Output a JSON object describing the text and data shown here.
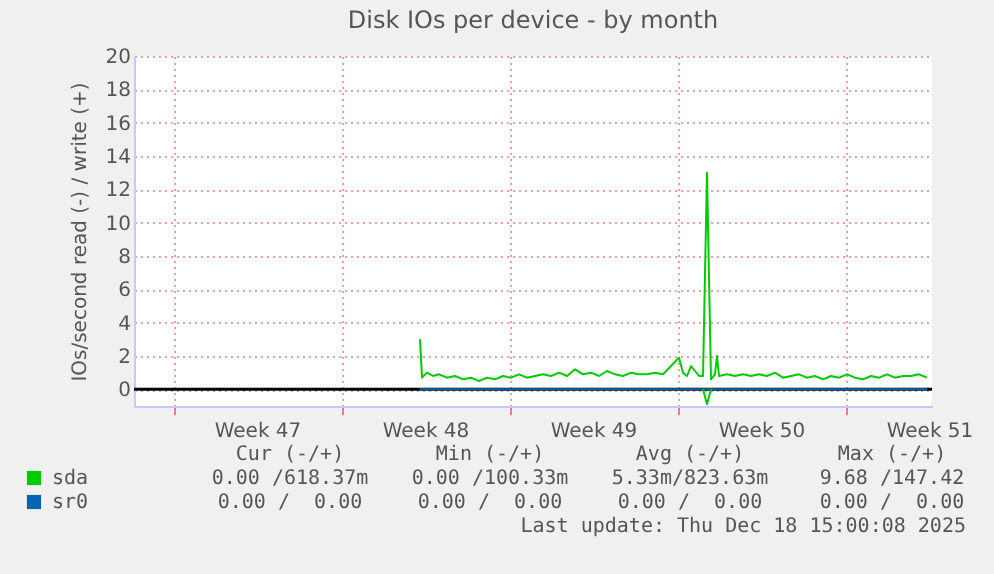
{
  "chart_data": {
    "type": "line",
    "title": "Disk IOs per device - by month",
    "ylabel": "IOs/second read (-) / write (+)",
    "xlim": [
      "2025-11-15T09:00",
      "2025-12-18T15:00"
    ],
    "xticks": [
      {
        "value": "2025-11-17T00:00",
        "label": null
      },
      {
        "value": "2025-11-20T12:00",
        "label": "Week 47"
      },
      {
        "value": "2025-11-24T00:00",
        "label": null
      },
      {
        "value": "2025-11-27T12:00",
        "label": "Week 48"
      },
      {
        "value": "2025-12-01T00:00",
        "label": null
      },
      {
        "value": "2025-12-04T12:00",
        "label": "Week 49"
      },
      {
        "value": "2025-12-08T00:00",
        "label": null
      },
      {
        "value": "2025-12-11T12:00",
        "label": "Week 50"
      },
      {
        "value": "2025-12-15T00:00",
        "label": null
      },
      {
        "value": "2025-12-18T12:00",
        "label": "Week 51"
      }
    ],
    "ylim": [
      -1,
      20
    ],
    "yticks": [
      0,
      2,
      4,
      6,
      8,
      10,
      12,
      14,
      16,
      18,
      20
    ],
    "grid": true,
    "legend": "bottom left",
    "ref_lines": [
      {
        "axis": "y",
        "value": 0,
        "color": "#000000"
      }
    ],
    "series": [
      {
        "name": "sda",
        "color": "#00cc00",
        "x": [
          "2025-11-27T07:00",
          "2025-11-27T09:00",
          "2025-11-27T14:00",
          "2025-11-27T20:00",
          "2025-11-28T02:00",
          "2025-11-28T10:00",
          "2025-11-28T18:00",
          "2025-11-29T02:00",
          "2025-11-29T10:00",
          "2025-11-29T18:00",
          "2025-11-30T02:00",
          "2025-11-30T10:00",
          "2025-11-30T18:00",
          "2025-12-01T02:00",
          "2025-12-01T10:00",
          "2025-12-01T18:00",
          "2025-12-02T02:00",
          "2025-12-02T10:00",
          "2025-12-02T18:00",
          "2025-12-03T02:00",
          "2025-12-03T10:00",
          "2025-12-03T18:00",
          "2025-12-04T02:00",
          "2025-12-04T10:00",
          "2025-12-04T18:00",
          "2025-12-05T02:00",
          "2025-12-05T10:00",
          "2025-12-05T18:00",
          "2025-12-06T02:00",
          "2025-12-06T10:00",
          "2025-12-06T18:00",
          "2025-12-07T02:00",
          "2025-12-07T10:00",
          "2025-12-07T18:00",
          "2025-12-08T02:00",
          "2025-12-08T06:00",
          "2025-12-08T10:00",
          "2025-12-08T14:00",
          "2025-12-08T18:00",
          "2025-12-08T22:00",
          "2025-12-09T02:00",
          "2025-12-09T06:00",
          "2025-12-09T10:00",
          "2025-12-09T14:00",
          "2025-12-09T16:00",
          "2025-12-09T18:00",
          "2025-12-10T02:00",
          "2025-12-10T10:00",
          "2025-12-10T18:00",
          "2025-12-11T02:00",
          "2025-12-11T10:00",
          "2025-12-11T18:00",
          "2025-12-12T02:00",
          "2025-12-12T10:00",
          "2025-12-12T18:00",
          "2025-12-13T02:00",
          "2025-12-13T10:00",
          "2025-12-13T18:00",
          "2025-12-14T02:00",
          "2025-12-14T10:00",
          "2025-12-14T18:00",
          "2025-12-15T02:00",
          "2025-12-15T10:00",
          "2025-12-15T18:00",
          "2025-12-16T02:00",
          "2025-12-16T10:00",
          "2025-12-16T18:00",
          "2025-12-17T02:00",
          "2025-12-17T10:00",
          "2025-12-17T18:00",
          "2025-12-18T02:00",
          "2025-12-18T10:00"
        ],
        "values": [
          3.0,
          0.7,
          1.0,
          0.8,
          0.9,
          0.7,
          0.8,
          0.6,
          0.7,
          0.5,
          0.7,
          0.6,
          0.8,
          0.7,
          0.9,
          0.7,
          0.8,
          0.9,
          0.8,
          1.0,
          0.8,
          1.2,
          0.9,
          1.0,
          0.8,
          1.1,
          0.9,
          0.8,
          1.0,
          0.9,
          0.9,
          1.0,
          0.9,
          1.4,
          1.9,
          1.0,
          0.8,
          1.4,
          1.1,
          0.8,
          0.8,
          13.0,
          0.6,
          0.9,
          2.0,
          0.8,
          0.9,
          0.8,
          0.9,
          0.8,
          0.9,
          0.8,
          1.0,
          0.7,
          0.8,
          0.9,
          0.7,
          0.8,
          0.6,
          0.8,
          0.7,
          0.9,
          0.7,
          0.6,
          0.8,
          0.7,
          0.9,
          0.7,
          0.8,
          0.8,
          0.9,
          0.7
        ]
      },
      {
        "name": "sr0",
        "color": "#0066b3",
        "x": [
          "2025-11-27T07:00",
          "2025-12-18T10:00"
        ],
        "values": [
          0,
          0
        ]
      },
      {
        "color": "#00cc00",
        "x": [
          "2025-12-09T02:00",
          "2025-12-09T06:00",
          "2025-12-09T10:00"
        ],
        "values": [
          0,
          -0.9,
          0
        ]
      }
    ],
    "annotations": [
      "Cur (-/+)",
      "Min (-/+)",
      "Avg (-/+)",
      "Max (-/+)",
      "0.00 /618.37m",
      "0.00 /100.33m",
      "5.33m/823.63m",
      "9.68 /147.42",
      "0.00 /  0.00",
      "0.00 /  0.00",
      "0.00 /  0.00",
      "0.00 /  0.00",
      "Last update: Thu Dec 18 15:00:08 2025"
    ]
  }
}
